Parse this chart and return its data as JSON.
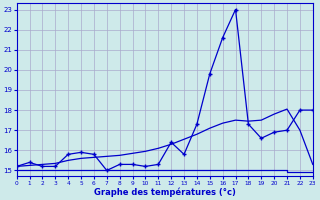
{
  "xlabel": "Graphe des températures (°c)",
  "bg_color": "#ceeaea",
  "grid_color": "#aaaacc",
  "line_color": "#0000cc",
  "xlim": [
    0,
    23
  ],
  "ylim": [
    14.7,
    23.3
  ],
  "yticks": [
    15,
    16,
    17,
    18,
    19,
    20,
    21,
    22,
    23
  ],
  "xticks": [
    0,
    1,
    2,
    3,
    4,
    5,
    6,
    7,
    8,
    9,
    10,
    11,
    12,
    13,
    14,
    15,
    16,
    17,
    18,
    19,
    20,
    21,
    22,
    23
  ],
  "hours": [
    0,
    1,
    2,
    3,
    4,
    5,
    6,
    7,
    8,
    9,
    10,
    11,
    12,
    13,
    14,
    15,
    16,
    17,
    18,
    19,
    20,
    21,
    22,
    23
  ],
  "temp_obs": [
    15.2,
    15.4,
    15.2,
    15.2,
    15.8,
    15.9,
    15.8,
    15.0,
    15.3,
    15.3,
    15.2,
    15.3,
    16.4,
    15.8,
    17.3,
    19.8,
    21.6,
    23.0,
    17.3,
    16.6,
    16.9,
    17.0,
    18.0,
    18.0
  ],
  "temp_smooth": [
    15.2,
    15.25,
    15.3,
    15.35,
    15.5,
    15.6,
    15.65,
    15.7,
    15.75,
    15.85,
    15.95,
    16.1,
    16.3,
    16.55,
    16.8,
    17.1,
    17.35,
    17.5,
    17.45,
    17.5,
    17.8,
    18.05,
    17.0,
    15.3
  ],
  "temp_min": [
    15.0,
    15.0,
    15.0,
    15.0,
    15.0,
    15.0,
    15.0,
    15.0,
    15.0,
    15.0,
    15.0,
    15.0,
    15.0,
    15.0,
    15.0,
    15.0,
    15.0,
    15.0,
    15.0,
    15.0,
    15.0,
    14.9,
    14.9,
    14.9
  ]
}
